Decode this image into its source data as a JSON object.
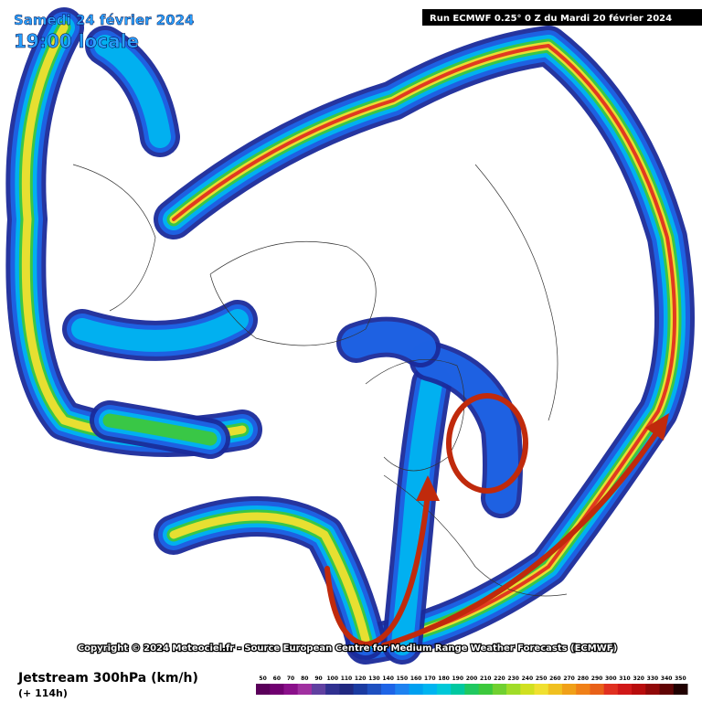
{
  "header": {
    "date": "Samedi 24 février 2024",
    "time": "19:00 locale",
    "run": "Run ECMWF 0.25° 0 Z du Mardi 20 février 2024"
  },
  "copyright": "Copyright © 2024 Meteociel.fr - Source European Centre for Medium Range Weather Forecasts (ECMWF)",
  "footer": {
    "title": "Jetstream 300hPa (km/h)",
    "lead": "(+ 114h)"
  },
  "legend": {
    "labels": [
      "50",
      "60",
      "70",
      "80",
      "90",
      "100",
      "110",
      "120",
      "130",
      "140",
      "150",
      "160",
      "170",
      "180",
      "190",
      "200",
      "210",
      "220",
      "230",
      "240",
      "250",
      "260",
      "270",
      "280",
      "290",
      "300",
      "310",
      "320",
      "330",
      "340",
      "350"
    ],
    "colors": [
      "#5a005a",
      "#700070",
      "#8a108a",
      "#a030a0",
      "#6040a0",
      "#303090",
      "#202880",
      "#1a3aa0",
      "#1e50c0",
      "#1e64e6",
      "#1e82f0",
      "#00a0f0",
      "#00b4f0",
      "#00c8d8",
      "#00c8a0",
      "#20c860",
      "#3cc83c",
      "#70d030",
      "#a0dc28",
      "#d0e020",
      "#f0e030",
      "#f0c020",
      "#f0a018",
      "#f08018",
      "#e86018",
      "#e03020",
      "#d01818",
      "#b80c0c",
      "#900808",
      "#600404",
      "#200000"
    ]
  }
}
